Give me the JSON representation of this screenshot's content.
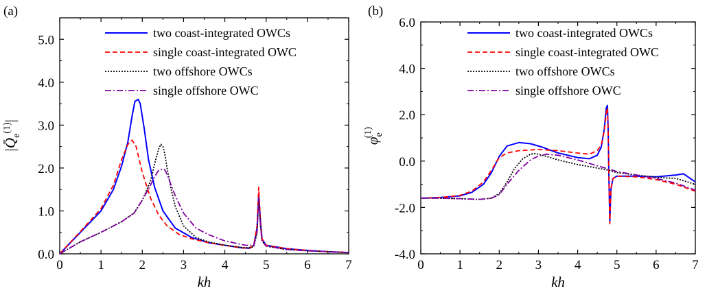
{
  "chart_data": [
    {
      "type": "line",
      "panel_label": "(a)",
      "xlabel": "kh",
      "ylabel": "|Q̄e(1)|",
      "xlim": [
        0,
        7
      ],
      "ylim": [
        0,
        5.5
      ],
      "xticks": [
        "0",
        "1",
        "2",
        "3",
        "4",
        "5",
        "6",
        "7"
      ],
      "yticks": [
        "0.0",
        "1.0",
        "2.0",
        "3.0",
        "4.0",
        "5.0"
      ],
      "legend_position": "top-right",
      "series": [
        {
          "name": "two coast-integrated OWCs",
          "color": "#0000ff",
          "dash": "solid",
          "x": [
            0,
            0.5,
            1,
            1.3,
            1.5,
            1.65,
            1.75,
            1.82,
            1.9,
            1.95,
            2.05,
            2.15,
            2.3,
            2.5,
            2.8,
            3.2,
            3.6,
            4.0,
            4.4,
            4.6,
            4.7,
            4.78,
            4.82,
            4.86,
            4.9,
            5.0,
            5.5,
            6.0,
            6.5,
            7.0
          ],
          "y": [
            0,
            0.5,
            1.0,
            1.5,
            2.05,
            2.6,
            3.2,
            3.55,
            3.6,
            3.5,
            2.9,
            2.2,
            1.55,
            1.0,
            0.6,
            0.38,
            0.26,
            0.2,
            0.14,
            0.13,
            0.2,
            0.6,
            1.4,
            0.8,
            0.35,
            0.2,
            0.12,
            0.08,
            0.05,
            0.03
          ]
        },
        {
          "name": "single coast-integrated OWC",
          "color": "#ff0000",
          "dash": "dashed",
          "x": [
            0,
            0.5,
            1,
            1.3,
            1.5,
            1.65,
            1.75,
            1.85,
            2.0,
            2.2,
            2.4,
            2.6,
            2.9,
            3.2,
            3.6,
            4.0,
            4.4,
            4.6,
            4.7,
            4.78,
            4.82,
            4.86,
            4.9,
            5.0,
            5.5,
            6.0,
            6.5,
            7.0
          ],
          "y": [
            0,
            0.52,
            1.05,
            1.6,
            2.2,
            2.55,
            2.65,
            2.5,
            1.9,
            1.3,
            0.9,
            0.65,
            0.45,
            0.35,
            0.26,
            0.2,
            0.14,
            0.13,
            0.2,
            0.65,
            1.55,
            0.8,
            0.35,
            0.2,
            0.12,
            0.08,
            0.05,
            0.03
          ]
        },
        {
          "name": "two offshore OWCs",
          "color": "#000000",
          "dash": "dotted",
          "x": [
            0,
            0.5,
            1.0,
            1.5,
            1.8,
            2.0,
            2.2,
            2.3,
            2.4,
            2.45,
            2.5,
            2.55,
            2.6,
            2.7,
            2.8,
            3.0,
            3.3,
            3.6,
            4.0,
            4.5,
            4.7,
            4.78,
            4.82,
            4.86,
            4.9,
            5.0,
            5.5,
            6.0,
            6.5,
            7.0
          ],
          "y": [
            0,
            0.28,
            0.5,
            0.75,
            0.95,
            1.25,
            1.7,
            2.1,
            2.45,
            2.55,
            2.5,
            2.3,
            2.0,
            1.5,
            1.1,
            0.65,
            0.38,
            0.28,
            0.2,
            0.14,
            0.16,
            0.5,
            1.3,
            0.7,
            0.3,
            0.18,
            0.1,
            0.07,
            0.05,
            0.03
          ]
        },
        {
          "name": "single offshore OWC",
          "color": "#8000a0",
          "dash": "dashdot",
          "x": [
            0,
            0.5,
            1.0,
            1.5,
            1.8,
            2.0,
            2.2,
            2.3,
            2.4,
            2.5,
            2.55,
            2.6,
            2.7,
            2.8,
            3.0,
            3.3,
            3.6,
            4.0,
            4.5,
            4.7,
            4.78,
            4.82,
            4.86,
            4.9,
            5.0,
            5.5,
            6.0,
            6.5,
            7.0
          ],
          "y": [
            0,
            0.28,
            0.5,
            0.75,
            0.95,
            1.25,
            1.6,
            1.8,
            1.95,
            1.98,
            1.95,
            1.85,
            1.6,
            1.35,
            0.95,
            0.6,
            0.45,
            0.3,
            0.2,
            0.2,
            0.5,
            1.3,
            0.7,
            0.3,
            0.18,
            0.1,
            0.07,
            0.05,
            0.03
          ]
        }
      ]
    },
    {
      "type": "line",
      "panel_label": "(b)",
      "xlabel": "kh",
      "ylabel": "φe(1)",
      "xlim": [
        0,
        7
      ],
      "ylim": [
        -4.0,
        6.0
      ],
      "xticks": [
        "0",
        "1",
        "2",
        "3",
        "4",
        "5",
        "6",
        "7"
      ],
      "yticks": [
        "-4.0",
        "-2.0",
        "0.0",
        "2.0",
        "4.0",
        "6.0"
      ],
      "legend_position": "top-right",
      "series": [
        {
          "name": "two coast-integrated OWCs",
          "color": "#0000ff",
          "dash": "solid",
          "x": [
            0,
            0.5,
            1.0,
            1.3,
            1.6,
            1.8,
            2.0,
            2.2,
            2.5,
            2.8,
            3.1,
            3.5,
            4.0,
            4.3,
            4.5,
            4.6,
            4.68,
            4.73,
            4.76,
            4.78,
            4.8,
            4.82,
            4.85,
            4.9,
            5.0,
            5.5,
            6.0,
            6.5,
            6.7,
            7.0
          ],
          "y": [
            -1.6,
            -1.57,
            -1.5,
            -1.35,
            -1.0,
            -0.5,
            0.2,
            0.65,
            0.8,
            0.75,
            0.6,
            0.35,
            0.15,
            0.1,
            0.25,
            0.6,
            1.4,
            2.3,
            2.4,
            1.2,
            -1.0,
            -2.6,
            -1.2,
            -0.75,
            -0.65,
            -0.65,
            -0.68,
            -0.6,
            -0.55,
            -0.9
          ]
        },
        {
          "name": "single coast-integrated OWC",
          "color": "#ff0000",
          "dash": "dashed",
          "x": [
            0,
            0.5,
            1.0,
            1.3,
            1.6,
            1.8,
            2.0,
            2.2,
            2.5,
            3.0,
            3.5,
            4.0,
            4.3,
            4.5,
            4.6,
            4.68,
            4.73,
            4.76,
            4.78,
            4.8,
            4.82,
            4.85,
            4.9,
            5.0,
            5.5,
            6.0,
            6.5,
            7.0
          ],
          "y": [
            -1.6,
            -1.57,
            -1.48,
            -1.3,
            -0.9,
            -0.4,
            0.15,
            0.35,
            0.45,
            0.5,
            0.45,
            0.35,
            0.3,
            0.45,
            0.7,
            1.3,
            2.1,
            2.3,
            1.2,
            -1.0,
            -2.7,
            -1.2,
            -0.75,
            -0.65,
            -0.68,
            -0.8,
            -1.0,
            -1.3
          ]
        },
        {
          "name": "two offshore OWCs",
          "color": "#000000",
          "dash": "dotted",
          "x": [
            0,
            0.5,
            1.0,
            1.5,
            1.8,
            2.0,
            2.2,
            2.4,
            2.6,
            2.8,
            2.9,
            3.0,
            3.2,
            3.5,
            4.0,
            4.5,
            4.8,
            5.0,
            5.5,
            6.0,
            6.5,
            7.0
          ],
          "y": [
            -1.6,
            -1.6,
            -1.62,
            -1.65,
            -1.6,
            -1.4,
            -0.9,
            -0.3,
            0.1,
            0.3,
            0.32,
            0.3,
            0.2,
            0.05,
            -0.15,
            -0.3,
            -0.4,
            -0.5,
            -0.6,
            -0.7,
            -0.75,
            -1.0
          ]
        },
        {
          "name": "single offshore OWC",
          "color": "#8000a0",
          "dash": "dashdot",
          "x": [
            0,
            0.5,
            1.0,
            1.5,
            1.8,
            2.0,
            2.2,
            2.5,
            2.8,
            3.0,
            3.2,
            3.5,
            4.0,
            4.5,
            4.8,
            5.0,
            5.5,
            6.0,
            6.5,
            7.0
          ],
          "y": [
            -1.6,
            -1.6,
            -1.62,
            -1.65,
            -1.6,
            -1.45,
            -1.0,
            -0.4,
            0.05,
            0.22,
            0.3,
            0.25,
            0.05,
            -0.2,
            -0.35,
            -0.45,
            -0.6,
            -0.75,
            -0.95,
            -1.25
          ]
        }
      ]
    }
  ]
}
